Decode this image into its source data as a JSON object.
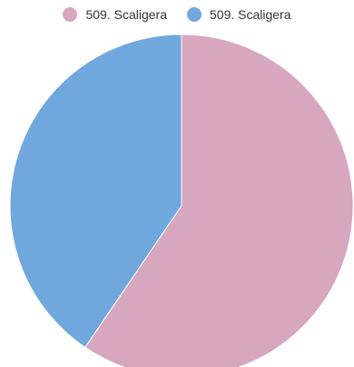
{
  "chart_data": {
    "type": "pie",
    "series": [
      {
        "name": "509. Scaligera",
        "value": 59.5,
        "color": "#d7a6bf"
      },
      {
        "name": "509. Scaligera",
        "value": 40.5,
        "color": "#70a8dd"
      }
    ],
    "legend_position": "top-center",
    "start_angle_deg": 0,
    "direction": "clockwise"
  }
}
